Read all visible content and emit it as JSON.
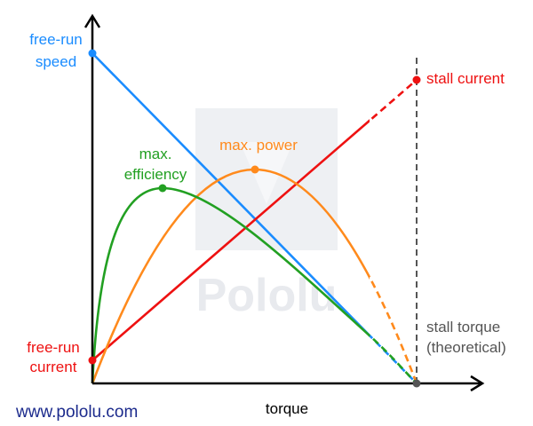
{
  "watermark": "Pololu",
  "labels": {
    "free_run_speed": [
      "free-run",
      "speed"
    ],
    "stall_current": "stall current",
    "max_power": "max. power",
    "max_efficiency": [
      "max.",
      "efficiency"
    ],
    "free_run_current": [
      "free-run",
      "current"
    ],
    "stall_torque": [
      "stall torque",
      "(theoretical)"
    ],
    "x_axis": "torque"
  },
  "footer": "www.pololu.com"
}
